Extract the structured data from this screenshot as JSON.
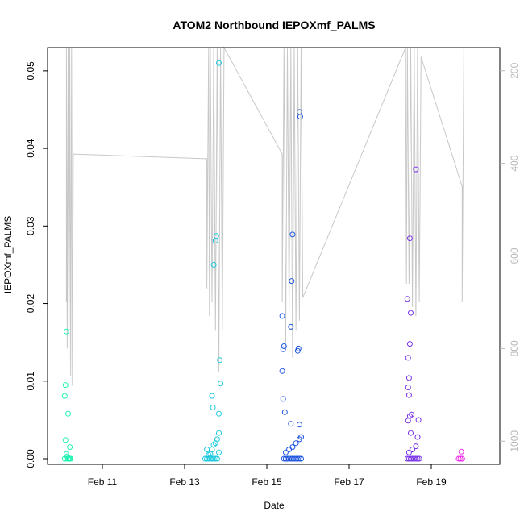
{
  "chart_data": {
    "type": "scatter",
    "title": "ATOM2 Northbound IEPOXmf_PALMS",
    "xlabel": "Date",
    "ylabel": "IEPOXmf_PALMS",
    "ylim": [
      0,
      0.053
    ],
    "y_ticks": [
      "0.00",
      "0.01",
      "0.02",
      "0.03",
      "0.04",
      "0.05"
    ],
    "y_tick_values": [
      0,
      0.01,
      0.02,
      0.03,
      0.04,
      0.05
    ],
    "xlim": [
      "2016-02-09 16:00",
      "2016-02-20 16:00"
    ],
    "x_ticks": [
      "Feb 11",
      "Feb 13",
      "Feb 15",
      "Feb 17",
      "Feb 19"
    ],
    "x_tick_values": [
      "2016-02-11",
      "2016-02-13",
      "2016-02-15",
      "2016-02-17",
      "2016-02-19"
    ],
    "secondary_axis": {
      "side": "right",
      "reversed": true,
      "range": [
        1050,
        150
      ],
      "ticks": [
        "200",
        "400",
        "600",
        "800",
        "1000"
      ],
      "tick_values": [
        200,
        400,
        600,
        800,
        1000
      ],
      "color": "#b8b8b8"
    },
    "grid": false,
    "series": [
      {
        "color": "#22f2b4",
        "points": [
          [
            "2016-02-10 04:00",
            0.0
          ],
          [
            "2016-02-10 04:30",
            0.0
          ],
          [
            "2016-02-10 05:00",
            0.0
          ],
          [
            "2016-02-10 05:30",
            0.0
          ],
          [
            "2016-02-10 02:00",
            0.0
          ],
          [
            "2016-02-10 03:00",
            0.0
          ],
          [
            "2016-02-10 03:30",
            0.0003
          ],
          [
            "2016-02-10 03:00",
            0.0006
          ],
          [
            "2016-02-10 02:30",
            0.0024
          ],
          [
            "2016-02-10 05:00",
            0.0015
          ],
          [
            "2016-02-10 04:00",
            0.0058
          ],
          [
            "2016-02-10 02:00",
            0.0081
          ],
          [
            "2016-02-10 02:30",
            0.0095
          ],
          [
            "2016-02-10 03:00",
            0.0164
          ]
        ]
      },
      {
        "color": "#1cc9dd",
        "points": [
          [
            "2016-02-13 12:00",
            0.0
          ],
          [
            "2016-02-13 13:00",
            0.0
          ],
          [
            "2016-02-13 14:00",
            0.0
          ],
          [
            "2016-02-13 15:00",
            0.0
          ],
          [
            "2016-02-13 16:00",
            0.0
          ],
          [
            "2016-02-13 17:00",
            0.0
          ],
          [
            "2016-02-13 18:00",
            0.0
          ],
          [
            "2016-02-13 19:00",
            0.0
          ],
          [
            "2016-02-13 15:00",
            0.0006
          ],
          [
            "2016-02-13 16:00",
            0.0012
          ],
          [
            "2016-02-13 17:00",
            0.0018
          ],
          [
            "2016-02-13 18:00",
            0.002
          ],
          [
            "2016-02-13 19:00",
            0.0025
          ],
          [
            "2016-02-13 20:00",
            0.0033
          ],
          [
            "2016-02-13 13:00",
            0.0012
          ],
          [
            "2016-02-13 14:00",
            0.0005
          ],
          [
            "2016-02-13 20:00",
            0.0008
          ],
          [
            "2016-02-13 20:00",
            0.0058
          ],
          [
            "2016-02-13 16:30",
            0.0066
          ],
          [
            "2016-02-13 16:00",
            0.0081
          ],
          [
            "2016-02-13 21:00",
            0.0097
          ],
          [
            "2016-02-13 20:30",
            0.0127
          ],
          [
            "2016-02-13 17:00",
            0.025
          ],
          [
            "2016-02-13 18:00",
            0.0281
          ],
          [
            "2016-02-13 18:30",
            0.0287
          ],
          [
            "2016-02-13 20:00",
            0.051
          ]
        ]
      },
      {
        "color": "#1f56e0",
        "points": [
          [
            "2016-02-15 10:00",
            0.0
          ],
          [
            "2016-02-15 11:00",
            0.0
          ],
          [
            "2016-02-15 12:00",
            0.0
          ],
          [
            "2016-02-15 13:00",
            0.0
          ],
          [
            "2016-02-15 14:00",
            0.0
          ],
          [
            "2016-02-15 15:00",
            0.0
          ],
          [
            "2016-02-15 16:00",
            0.0
          ],
          [
            "2016-02-15 17:00",
            0.0
          ],
          [
            "2016-02-15 18:00",
            0.0
          ],
          [
            "2016-02-15 19:00",
            0.0
          ],
          [
            "2016-02-15 20:00",
            0.0
          ],
          [
            "2016-02-15 11:00",
            0.0008
          ],
          [
            "2016-02-15 13:00",
            0.0012
          ],
          [
            "2016-02-15 15:00",
            0.0015
          ],
          [
            "2016-02-15 17:00",
            0.002
          ],
          [
            "2016-02-15 19:00",
            0.0025
          ],
          [
            "2016-02-15 20:00",
            0.0028
          ],
          [
            "2016-02-15 14:00",
            0.0045
          ],
          [
            "2016-02-15 19:00",
            0.0044
          ],
          [
            "2016-02-15 10:30",
            0.006
          ],
          [
            "2016-02-15 09:30",
            0.0077
          ],
          [
            "2016-02-15 09:00",
            0.0113
          ],
          [
            "2016-02-15 09:30",
            0.0141
          ],
          [
            "2016-02-15 10:00",
            0.0145
          ],
          [
            "2016-02-15 18:00",
            0.0139
          ],
          [
            "2016-02-15 18:30",
            0.0142
          ],
          [
            "2016-02-15 14:00",
            0.017
          ],
          [
            "2016-02-15 09:00",
            0.0184
          ],
          [
            "2016-02-15 14:30",
            0.0229
          ],
          [
            "2016-02-15 15:00",
            0.0289
          ],
          [
            "2016-02-15 19:30",
            0.0441
          ],
          [
            "2016-02-15 19:00",
            0.0447
          ]
        ]
      },
      {
        "color": "#7a34e8",
        "points": [
          [
            "2016-02-18 10:00",
            0.0
          ],
          [
            "2016-02-18 11:00",
            0.0
          ],
          [
            "2016-02-18 12:00",
            0.0
          ],
          [
            "2016-02-18 13:00",
            0.0
          ],
          [
            "2016-02-18 14:00",
            0.0
          ],
          [
            "2016-02-18 15:00",
            0.0
          ],
          [
            "2016-02-18 16:00",
            0.0
          ],
          [
            "2016-02-18 17:00",
            0.0
          ],
          [
            "2016-02-18 11:00",
            0.0008
          ],
          [
            "2016-02-18 13:00",
            0.0012
          ],
          [
            "2016-02-18 15:00",
            0.0016
          ],
          [
            "2016-02-18 12:00",
            0.0033
          ],
          [
            "2016-02-18 16:00",
            0.0028
          ],
          [
            "2016-02-18 10:30",
            0.0049
          ],
          [
            "2016-02-18 11:30",
            0.0055
          ],
          [
            "2016-02-18 12:30",
            0.0057
          ],
          [
            "2016-02-18 16:30",
            0.005
          ],
          [
            "2016-02-18 11:00",
            0.0082
          ],
          [
            "2016-02-18 10:30",
            0.0092
          ],
          [
            "2016-02-18 11:00",
            0.0104
          ],
          [
            "2016-02-18 10:30",
            0.013
          ],
          [
            "2016-02-18 11:30",
            0.0148
          ],
          [
            "2016-02-18 12:00",
            0.0188
          ],
          [
            "2016-02-18 10:00",
            0.0206
          ],
          [
            "2016-02-18 11:30",
            0.0284
          ],
          [
            "2016-02-18 15:00",
            0.0373
          ]
        ]
      },
      {
        "color": "#f02ae8",
        "points": [
          [
            "2016-02-19 16:00",
            0.0
          ],
          [
            "2016-02-19 17:00",
            0.0
          ],
          [
            "2016-02-19 18:00",
            0.0
          ],
          [
            "2016-02-19 17:30",
            0.0009
          ]
        ]
      }
    ],
    "altitude_line": {
      "color": "#c8c8c8",
      "points": [
        [
          "2016-02-10 03:00",
          700
        ],
        [
          "2016-02-10 03:00",
          150
        ],
        [
          "2016-02-10 03:30",
          800
        ],
        [
          "2016-02-10 04:00",
          150
        ],
        [
          "2016-02-10 04:30",
          830
        ],
        [
          "2016-02-10 05:00",
          150
        ],
        [
          "2016-02-10 05:30",
          860
        ],
        [
          "2016-02-10 06:00",
          150
        ],
        [
          "2016-02-10 06:30",
          880
        ],
        [
          "2016-02-10 07:00",
          380
        ],
        [
          "2016-02-13 13:00",
          390
        ],
        [
          "2016-02-13 13:00",
          670
        ],
        [
          "2016-02-13 14:00",
          150
        ],
        [
          "2016-02-13 14:30",
          730
        ],
        [
          "2016-02-13 15:00",
          150
        ],
        [
          "2016-02-13 16:00",
          700
        ],
        [
          "2016-02-13 17:00",
          150
        ],
        [
          "2016-02-13 18:00",
          760
        ],
        [
          "2016-02-13 19:00",
          150
        ],
        [
          "2016-02-13 20:00",
          850
        ],
        [
          "2016-02-13 21:00",
          150
        ],
        [
          "2016-02-13 22:00",
          760
        ],
        [
          "2016-02-13 23:00",
          150
        ],
        [
          "2016-02-15 09:00",
          380
        ],
        [
          "2016-02-15 09:00",
          700
        ],
        [
          "2016-02-15 10:00",
          150
        ],
        [
          "2016-02-15 11:00",
          800
        ],
        [
          "2016-02-15 12:00",
          150
        ],
        [
          "2016-02-15 13:00",
          720
        ],
        [
          "2016-02-15 14:00",
          150
        ],
        [
          "2016-02-15 15:00",
          820
        ],
        [
          "2016-02-15 16:00",
          150
        ],
        [
          "2016-02-15 17:00",
          760
        ],
        [
          "2016-02-15 18:00",
          150
        ],
        [
          "2016-02-15 19:00",
          740
        ],
        [
          "2016-02-15 20:00",
          150
        ],
        [
          "2016-02-15 21:00",
          690
        ],
        [
          "2016-02-18 09:00",
          150
        ],
        [
          "2016-02-18 09:30",
          660
        ],
        [
          "2016-02-18 10:00",
          150
        ],
        [
          "2016-02-18 11:00",
          660
        ],
        [
          "2016-02-18 12:00",
          150
        ],
        [
          "2016-02-18 13:00",
          710
        ],
        [
          "2016-02-18 14:00",
          150
        ],
        [
          "2016-02-18 15:00",
          730
        ],
        [
          "2016-02-18 16:00",
          150
        ],
        [
          "2016-02-18 17:00",
          700
        ],
        [
          "2016-02-18 18:00",
          170
        ],
        [
          "2016-02-19 18:00",
          450
        ],
        [
          "2016-02-19 18:00",
          700
        ],
        [
          "2016-02-19 19:00",
          150
        ]
      ]
    }
  }
}
